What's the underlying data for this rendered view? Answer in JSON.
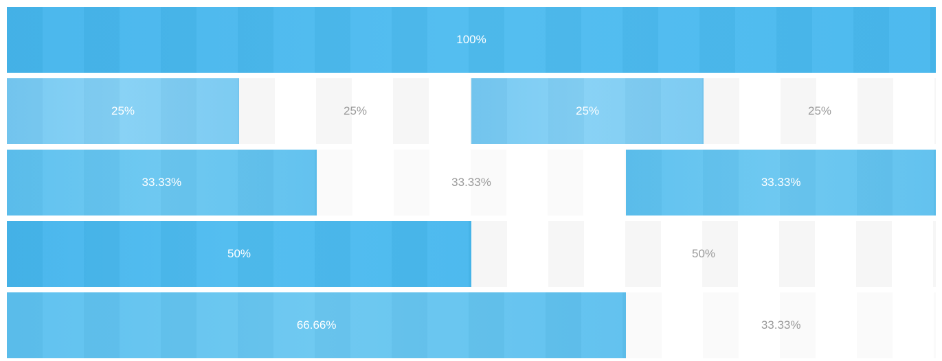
{
  "rows": [
    {
      "cells": [
        {
          "label": "100%",
          "fraction": 1.0,
          "filled": true
        }
      ]
    },
    {
      "cells": [
        {
          "label": "25%",
          "fraction": 0.25,
          "filled": true
        },
        {
          "label": "25%",
          "fraction": 0.25,
          "filled": false
        },
        {
          "label": "25%",
          "fraction": 0.25,
          "filled": true
        },
        {
          "label": "25%",
          "fraction": 0.25,
          "filled": false
        }
      ]
    },
    {
      "cells": [
        {
          "label": "33.33%",
          "fraction": 0.3333,
          "filled": true
        },
        {
          "label": "33.33%",
          "fraction": 0.3333,
          "filled": false
        },
        {
          "label": "33.33%",
          "fraction": 0.3333,
          "filled": true
        }
      ]
    },
    {
      "cells": [
        {
          "label": "50%",
          "fraction": 0.5,
          "filled": true
        },
        {
          "label": "50%",
          "fraction": 0.5,
          "filled": false
        }
      ]
    },
    {
      "cells": [
        {
          "label": "66.66%",
          "fraction": 0.6666,
          "filled": true
        },
        {
          "label": "33.33%",
          "fraction": 0.3333,
          "filled": false
        }
      ]
    }
  ],
  "colors": {
    "primary": "#4fbcf0",
    "light": "#84d0f5",
    "mid": "#6ac7f1",
    "empty": "#f6f6f6",
    "empty_text": "#9a9a9a",
    "filled_text": "#ffffff"
  }
}
